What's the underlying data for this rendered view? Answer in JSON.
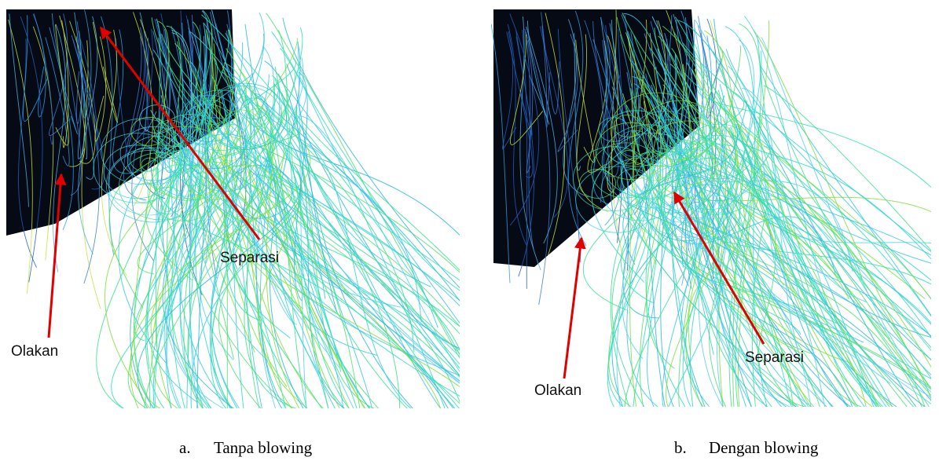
{
  "figure": {
    "panels": [
      {
        "label": "a.",
        "caption": "Tanpa blowing",
        "annotations": [
          "Separasi",
          "Olakan"
        ]
      },
      {
        "label": "b.",
        "caption": "Dengan blowing",
        "annotations": [
          "Olakan",
          "Separasi"
        ]
      }
    ]
  }
}
